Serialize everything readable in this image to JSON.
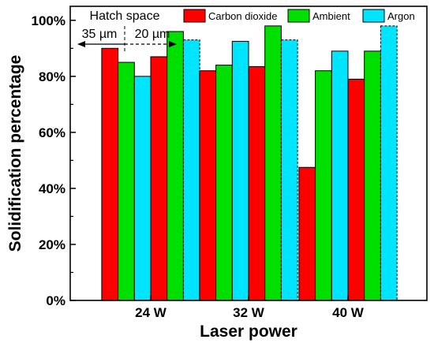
{
  "chart_data": {
    "type": "bar",
    "xlabel": "Laser power",
    "ylabel": "Solidification percentage",
    "ylim": [
      0,
      105
    ],
    "yticks": [
      0,
      20,
      40,
      60,
      80,
      100
    ],
    "ytick_labels": [
      "0%",
      "20%",
      "40%",
      "60%",
      "80%",
      "100%"
    ],
    "categories": [
      "24 W",
      "32 W",
      "40 W"
    ],
    "series": [
      {
        "name": "Carbon dioxide",
        "color": "#ff0000",
        "hatch_space": "35 µm",
        "values": [
          90,
          82,
          47.5
        ]
      },
      {
        "name": "Ambient",
        "color": "#00e000",
        "hatch_space": "35 µm",
        "values": [
          85,
          84,
          82
        ]
      },
      {
        "name": "Argon",
        "color": "#00e5ff",
        "hatch_space": "35 µm",
        "values": [
          80,
          92.5,
          89
        ]
      },
      {
        "name": "Carbon dioxide",
        "color": "#ff0000",
        "hatch_space": "20 µm",
        "values": [
          87,
          83.5,
          79
        ]
      },
      {
        "name": "Ambient",
        "color": "#00e000",
        "hatch_space": "20 µm",
        "values": [
          96,
          98,
          89
        ]
      },
      {
        "name": "Argon",
        "color": "#00e5ff",
        "hatch_space": "20 µm",
        "values": [
          93,
          93,
          98
        ]
      }
    ],
    "legend": {
      "placement": "top-right",
      "entries": [
        {
          "label": "Carbon dioxide",
          "color": "#ff0000"
        },
        {
          "label": "Ambient",
          "color": "#00e000"
        },
        {
          "label": "Argon",
          "color": "#00e5ff"
        }
      ]
    },
    "annotation": {
      "title": "Hatch space",
      "left_label": "35 µm",
      "right_label": "20 µm"
    },
    "grid": false
  }
}
